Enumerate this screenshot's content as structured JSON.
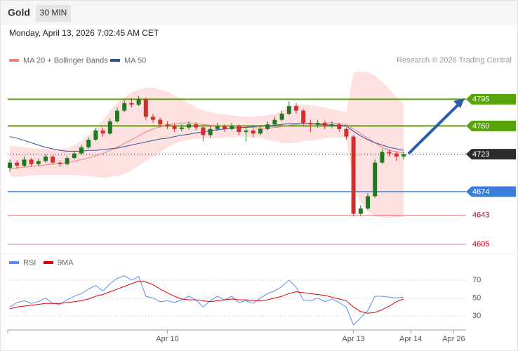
{
  "header": {
    "symbol": "Gold",
    "interval": "30 MIN",
    "timestamp": "Monday, April 13, 2026 7:02:45 AM CET",
    "source": "Research © 2026 Trading Central"
  },
  "chart_data": [
    {
      "type": "candlestick",
      "categories": [
        null,
        null,
        null,
        null,
        null,
        null,
        null,
        null,
        null,
        null,
        null,
        null,
        null,
        null,
        null,
        null,
        null,
        null,
        null,
        null,
        null,
        null,
        "Apr 10",
        null,
        null,
        null,
        null,
        null,
        null,
        null,
        null,
        null,
        null,
        null,
        null,
        null,
        null,
        null,
        null,
        null,
        null,
        null,
        null,
        null,
        null,
        null,
        null,
        null,
        "Apr 13",
        null,
        null,
        null,
        null,
        null,
        null,
        null,
        "Apr 14",
        null,
        null,
        null,
        null,
        null,
        "Apr 26"
      ],
      "ohlc": [
        [
          4705,
          4716,
          4700,
          4712
        ],
        [
          4712,
          4715,
          4704,
          4708
        ],
        [
          4708,
          4720,
          4706,
          4716
        ],
        [
          4716,
          4718,
          4707,
          4710
        ],
        [
          4710,
          4717,
          4708,
          4714
        ],
        [
          4714,
          4723,
          4712,
          4720
        ],
        [
          4720,
          4722,
          4709,
          4712
        ],
        [
          4712,
          4715,
          4706,
          4710
        ],
        [
          4710,
          4721,
          4708,
          4718
        ],
        [
          4718,
          4727,
          4716,
          4724
        ],
        [
          4724,
          4735,
          4722,
          4732
        ],
        [
          4732,
          4745,
          4730,
          4742
        ],
        [
          4742,
          4757,
          4740,
          4754
        ],
        [
          4754,
          4758,
          4746,
          4750
        ],
        [
          4750,
          4770,
          4748,
          4766
        ],
        [
          4766,
          4784,
          4764,
          4780
        ],
        [
          4780,
          4794,
          4778,
          4790
        ],
        [
          4790,
          4796,
          4784,
          4788
        ],
        [
          4788,
          4799,
          4786,
          4795
        ],
        [
          4795,
          4797,
          4768,
          4772
        ],
        [
          4772,
          4776,
          4764,
          4768
        ],
        [
          4768,
          4771,
          4758,
          4762
        ],
        [
          4762,
          4766,
          4756,
          4760
        ],
        [
          4760,
          4763,
          4752,
          4756
        ],
        [
          4756,
          4762,
          4753,
          4758
        ],
        [
          4758,
          4766,
          4755,
          4762
        ],
        [
          4762,
          4765,
          4754,
          4758
        ],
        [
          4758,
          4761,
          4740,
          4748
        ],
        [
          4748,
          4760,
          4745,
          4756
        ],
        [
          4756,
          4764,
          4753,
          4760
        ],
        [
          4760,
          4762,
          4752,
          4756
        ],
        [
          4756,
          4764,
          4754,
          4760
        ],
        [
          4760,
          4762,
          4748,
          4752
        ],
        [
          4752,
          4758,
          4740,
          4754
        ],
        [
          4754,
          4757,
          4745,
          4750
        ],
        [
          4750,
          4760,
          4748,
          4756
        ],
        [
          4756,
          4766,
          4754,
          4762
        ],
        [
          4762,
          4772,
          4760,
          4768
        ],
        [
          4768,
          4780,
          4766,
          4776
        ],
        [
          4776,
          4792,
          4774,
          4786
        ],
        [
          4786,
          4790,
          4776,
          4780
        ],
        [
          4780,
          4782,
          4760,
          4764
        ],
        [
          4764,
          4768,
          4752,
          4762
        ],
        [
          4762,
          4768,
          4758,
          4764
        ],
        [
          4764,
          4767,
          4756,
          4760
        ],
        [
          4760,
          4766,
          4757,
          4762
        ],
        [
          4762,
          4764,
          4752,
          4756
        ],
        [
          4756,
          4758,
          4742,
          4746
        ],
        [
          4746,
          4748,
          4642,
          4645
        ],
        [
          4645,
          4656,
          4642,
          4652
        ],
        [
          4652,
          4672,
          4650,
          4668
        ],
        [
          4668,
          4716,
          4666,
          4712
        ],
        [
          4712,
          4730,
          4710,
          4726
        ],
        [
          4726,
          4729,
          4720,
          4724
        ],
        [
          4724,
          4727,
          4714,
          4720
        ],
        [
          4720,
          4726,
          4716,
          4723
        ],
        null,
        null,
        null,
        null,
        null,
        null,
        null
      ],
      "up_color": "#1f7a1f",
      "down_color": "#d0312d",
      "series": [
        {
          "name": "MA 20 + Bollinger Bands",
          "color": "#f08080",
          "values": [
            4704,
            4705,
            4706,
            4707,
            4708,
            4709,
            4710,
            4711,
            4712,
            4714,
            4716,
            4718,
            4721,
            4724,
            4728,
            4732,
            4737,
            4742,
            4747,
            4752,
            4756,
            4759,
            4761,
            4763,
            4764,
            4764,
            4763,
            4762,
            4761,
            4760,
            4760,
            4760,
            4760,
            4759,
            4758,
            4757,
            4757,
            4758,
            4759,
            4761,
            4762,
            4763,
            4763,
            4763,
            4764,
            4764,
            4763,
            4762,
            4756,
            4750,
            4744,
            4738,
            4732,
            4728,
            4726,
            4725,
            null,
            null,
            null,
            null,
            null,
            null,
            null
          ]
        },
        {
          "name": "MA 50",
          "color": "#2a5599",
          "values": [
            4746,
            4744,
            4741,
            4738,
            4735,
            4732,
            4730,
            4728,
            4727,
            4727,
            4727,
            4728,
            4728,
            4729,
            4730,
            4731,
            4733,
            4735,
            4737,
            4739,
            4741,
            4743,
            4744,
            4746,
            4748,
            4749,
            4751,
            4752,
            4754,
            4755,
            4756,
            4757,
            4758,
            4758,
            4759,
            4760,
            4760,
            4761,
            4762,
            4763,
            4763,
            4763,
            4763,
            4762,
            4762,
            4761,
            4761,
            4760,
            4753,
            4747,
            4742,
            4738,
            4735,
            4732,
            4730,
            4728,
            null,
            null,
            null,
            null,
            null,
            null,
            null
          ]
        }
      ],
      "bands": {
        "color": "#ffe0e0",
        "upper": [
          4734,
          4733,
          4732,
          4731,
          4730,
          4730,
          4730,
          4730,
          4731,
          4735,
          4740,
          4748,
          4758,
          4768,
          4780,
          4790,
          4798,
          4804,
          4808,
          4810,
          4810,
          4808,
          4805,
          4800,
          4795,
          4790,
          4784,
          4780,
          4778,
          4776,
          4775,
          4774,
          4773,
          4772,
          4772,
          4773,
          4774,
          4776,
          4780,
          4785,
          4788,
          4788,
          4787,
          4786,
          4784,
          4782,
          4780,
          4778,
          4830,
          4832,
          4830,
          4826,
          4818,
          4808,
          4798,
          4788,
          null,
          null,
          null,
          null,
          null,
          null,
          null
        ],
        "lower": [
          4694,
          4693,
          4694,
          4695,
          4696,
          4696,
          4696,
          4696,
          4696,
          4696,
          4695,
          4694,
          4693,
          4692,
          4693,
          4694,
          4697,
          4702,
          4708,
          4714,
          4720,
          4726,
          4732,
          4737,
          4740,
          4742,
          4743,
          4744,
          4744,
          4744,
          4745,
          4745,
          4746,
          4746,
          4745,
          4744,
          4742,
          4740,
          4738,
          4737,
          4738,
          4740,
          4741,
          4742,
          4744,
          4745,
          4745,
          4744,
          4680,
          4660,
          4648,
          4642,
          4640,
          4640,
          4640,
          4641,
          null,
          null,
          null,
          null,
          null,
          null,
          null
        ]
      },
      "ylim": [
        4594,
        4833
      ],
      "levels": [
        {
          "value": 4795,
          "color": "#58a30a",
          "label_style": "box",
          "line_style": "solid"
        },
        {
          "value": 4760,
          "color": "#58a30a",
          "label_style": "box",
          "line_style": "solid"
        },
        {
          "value": 4723,
          "color": "#2b2b2b",
          "label_style": "box",
          "line_style": "dotted"
        },
        {
          "value": 4674,
          "color": "#3b7ddd",
          "label_style": "box",
          "line_style": "solid"
        },
        {
          "value": 4643,
          "color": "#d0021b",
          "label_style": "text",
          "line_style": "solid"
        },
        {
          "value": 4605,
          "color": "#d0021b",
          "label_style": "text",
          "line_style": "solid"
        }
      ]
    },
    {
      "type": "line",
      "series": [
        {
          "name": "RSI",
          "color": "#5b8def",
          "values": [
            40,
            45,
            47,
            44,
            46,
            50,
            44,
            43,
            48,
            52,
            55,
            60,
            64,
            58,
            66,
            72,
            75,
            70,
            74,
            52,
            50,
            46,
            47,
            45,
            48,
            52,
            48,
            40,
            47,
            52,
            48,
            52,
            45,
            47,
            44,
            50,
            55,
            58,
            63,
            70,
            62,
            48,
            47,
            50,
            46,
            49,
            45,
            40,
            20,
            28,
            36,
            52,
            52,
            51,
            50,
            51,
            null,
            null,
            null,
            null,
            null,
            null,
            null
          ]
        },
        {
          "name": "9MA",
          "color": "#e00000",
          "values": [
            38,
            40,
            41,
            42,
            43,
            44,
            44,
            44,
            45,
            46,
            47,
            49,
            52,
            54,
            57,
            60,
            63,
            66,
            69,
            68,
            65,
            60,
            56,
            52,
            49,
            48,
            48,
            47,
            46,
            47,
            48,
            49,
            48,
            48,
            47,
            47,
            48,
            50,
            52,
            55,
            57,
            56,
            55,
            54,
            53,
            51,
            49,
            47,
            40,
            35,
            33,
            34,
            37,
            41,
            46,
            49,
            null,
            null,
            null,
            null,
            null,
            null,
            null
          ]
        }
      ],
      "ylim": [
        16,
        81
      ],
      "yticks": [
        30,
        50,
        70
      ],
      "grid": true
    }
  ]
}
